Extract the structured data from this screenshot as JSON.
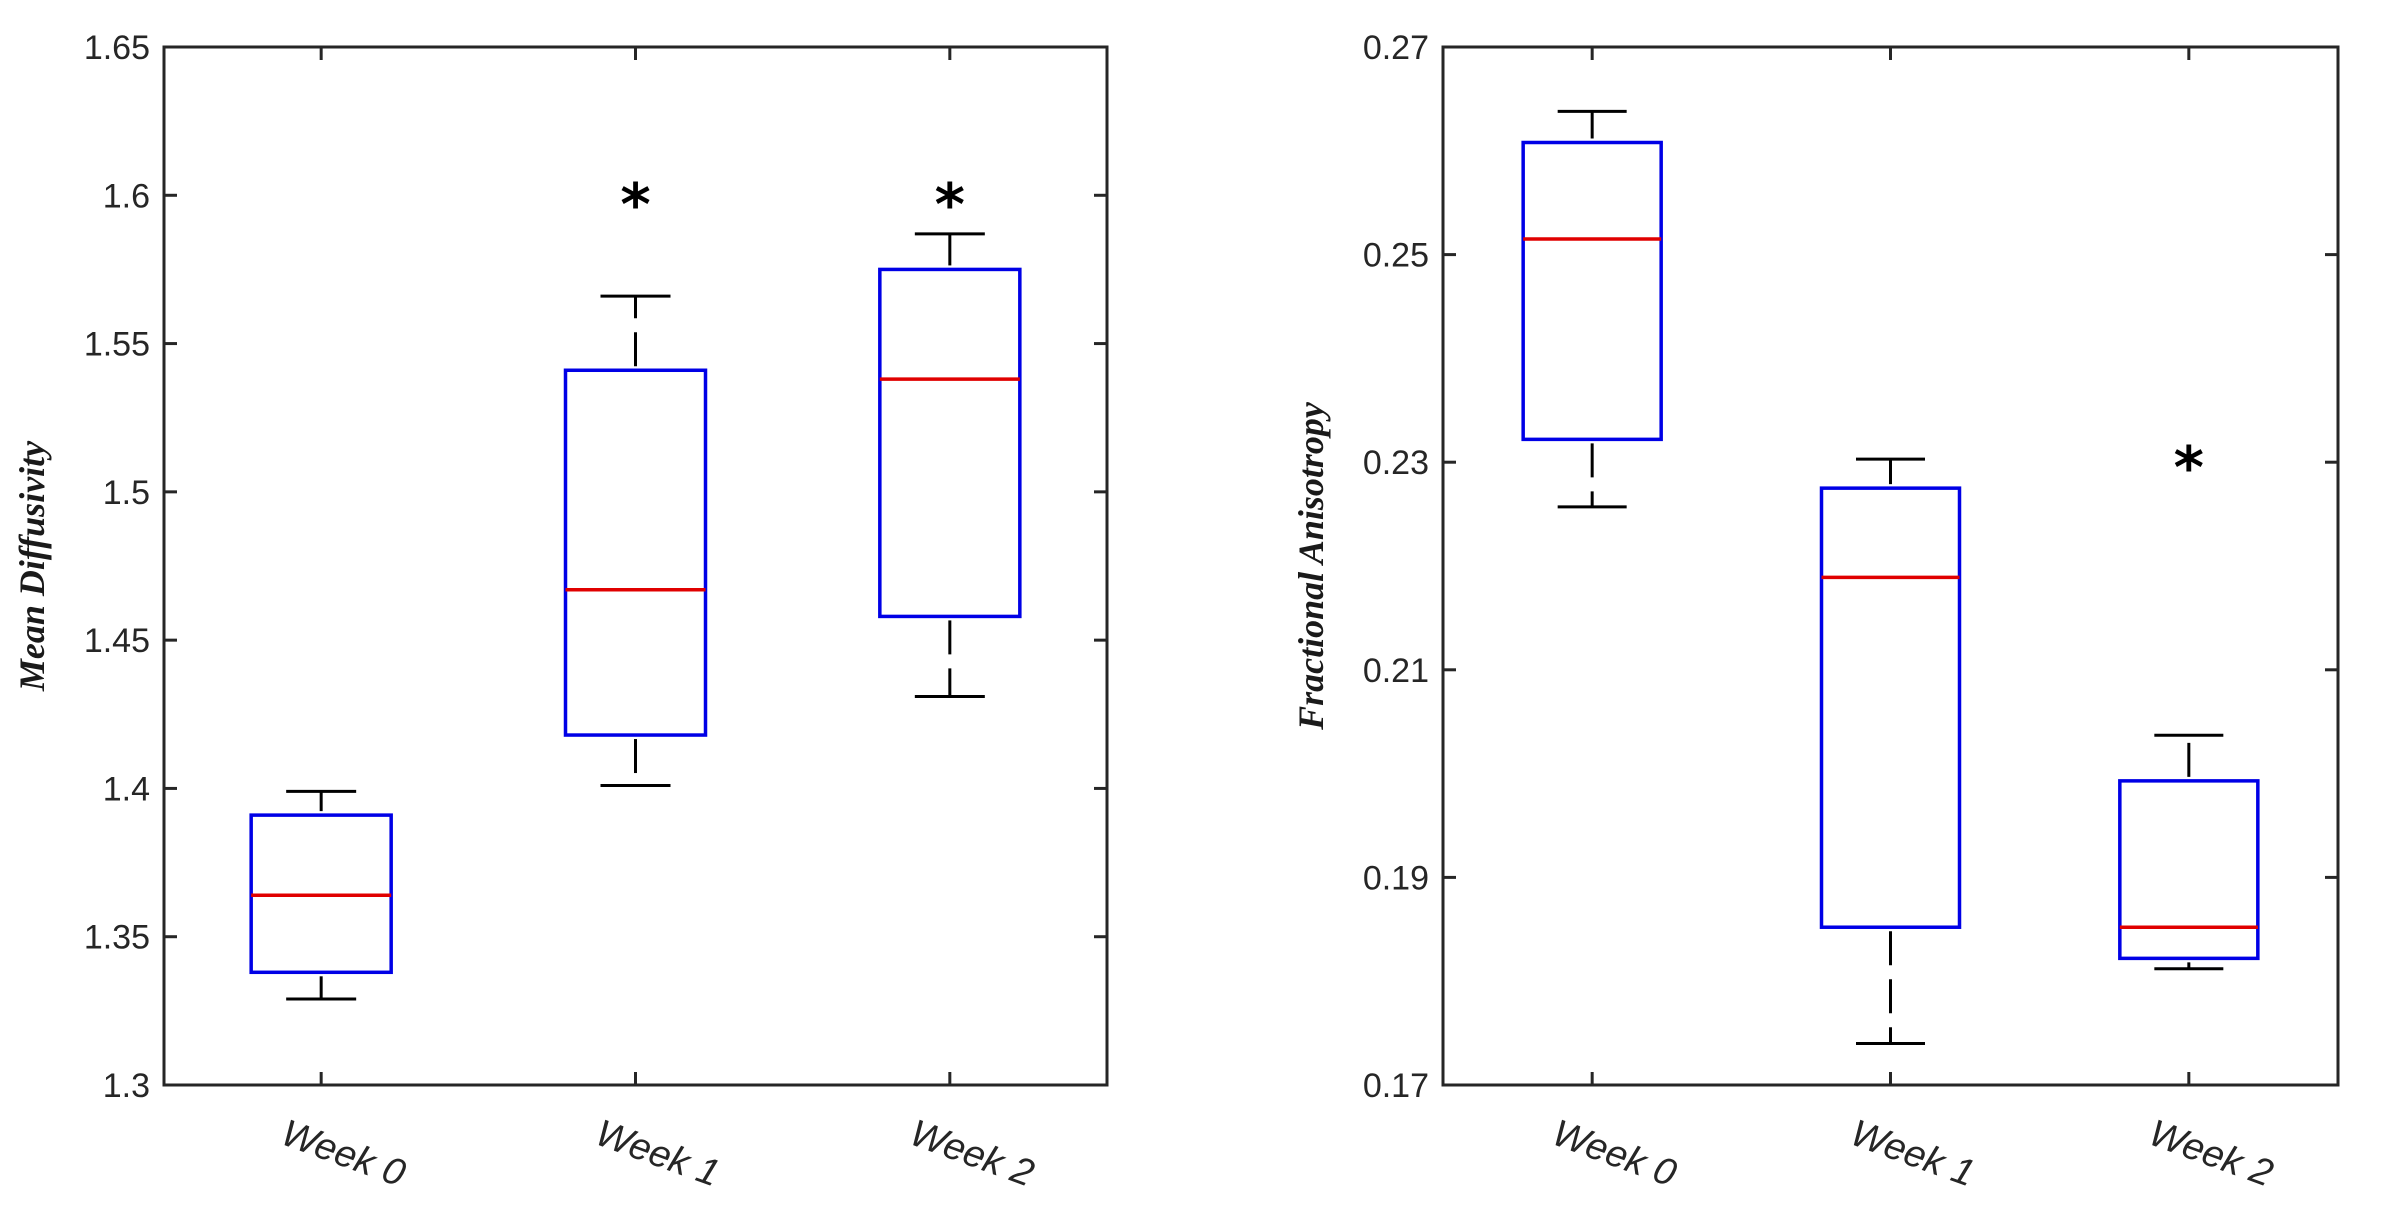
{
  "chart_data": [
    {
      "type": "box",
      "ylabel": "Mean Diffusivity",
      "xlabel": "",
      "ylim": [
        1.3,
        1.65
      ],
      "yticks": [
        1.3,
        1.35,
        1.4,
        1.45,
        1.5,
        1.55,
        1.6,
        1.65
      ],
      "ytick_labels": [
        "1.3",
        "1.35",
        "1.4",
        "1.45",
        "1.5",
        "1.55",
        "1.6",
        "1.65"
      ],
      "categories": [
        "Week 0",
        "Week 1",
        "Week 2"
      ],
      "boxes": [
        {
          "category": "Week 0",
          "whisker_low": 1.329,
          "q1": 1.338,
          "median": 1.364,
          "q3": 1.391,
          "whisker_high": 1.399,
          "significant": false
        },
        {
          "category": "Week 1",
          "whisker_low": 1.401,
          "q1": 1.418,
          "median": 1.467,
          "q3": 1.541,
          "whisker_high": 1.566,
          "significant": true
        },
        {
          "category": "Week 2",
          "whisker_low": 1.431,
          "q1": 1.458,
          "median": 1.538,
          "q3": 1.575,
          "whisker_high": 1.587,
          "significant": true
        }
      ],
      "annotation_symbol": "*",
      "annotation_value": 1.603
    },
    {
      "type": "box",
      "ylabel": "Fractional Anisotropy",
      "xlabel": "",
      "ylim": [
        0.17,
        0.27
      ],
      "yticks": [
        0.17,
        0.19,
        0.21,
        0.23,
        0.25,
        0.27
      ],
      "ytick_labels": [
        "0.17",
        "0.19",
        "0.21",
        "0.23",
        "0.25",
        "0.27"
      ],
      "categories": [
        "Week 0",
        "Week 1",
        "Week 2"
      ],
      "boxes": [
        {
          "category": "Week 0",
          "whisker_low": 0.2257,
          "q1": 0.2322,
          "median": 0.2515,
          "q3": 0.2608,
          "whisker_high": 0.2638,
          "significant": false
        },
        {
          "category": "Week 1",
          "whisker_low": 0.174,
          "q1": 0.1852,
          "median": 0.2189,
          "q3": 0.2275,
          "whisker_high": 0.2303,
          "significant": false
        },
        {
          "category": "Week 2",
          "whisker_low": 0.1812,
          "q1": 0.1822,
          "median": 0.1852,
          "q3": 0.1993,
          "whisker_high": 0.2037,
          "significant": true
        }
      ],
      "annotation_symbol": "*",
      "annotation_value": 0.2312
    }
  ],
  "colors": {
    "box": "#0000e6",
    "median": "#e00000",
    "whisker": "#000000",
    "axis": "#262626",
    "background": "#ffffff"
  }
}
